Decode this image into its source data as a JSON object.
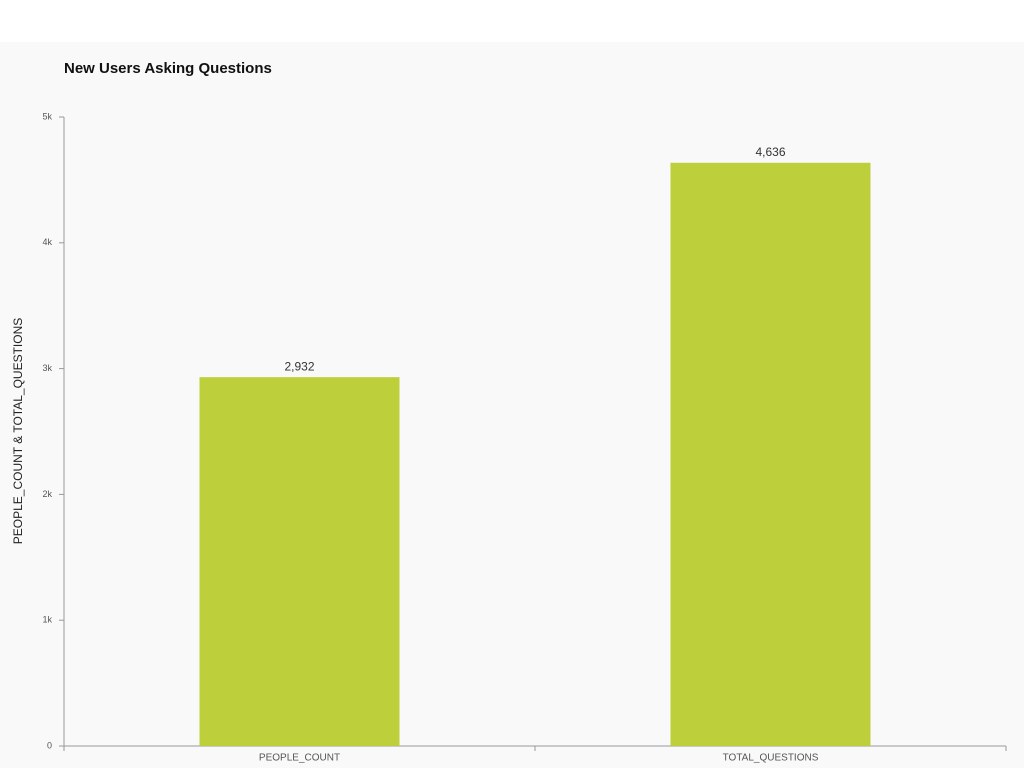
{
  "chart_data": {
    "type": "bar",
    "title": "New Users Asking Questions",
    "y_label": "PEOPLE_COUNT & TOTAL_QUESTIONS",
    "categories": [
      "PEOPLE_COUNT",
      "TOTAL_QUESTIONS"
    ],
    "values": [
      2932,
      4636
    ],
    "value_labels": [
      "2,932",
      "4,636"
    ],
    "color": "#bdd03c",
    "ylim": [
      0,
      5000
    ],
    "yticks": [
      0,
      {
        "value": 1000,
        "label": "1k"
      },
      {
        "value": 2000,
        "label": "2k"
      },
      {
        "value": 3000,
        "label": "3k"
      },
      {
        "value": 4000,
        "label": "4k"
      },
      {
        "value": 5000,
        "label": "5k"
      }
    ]
  }
}
